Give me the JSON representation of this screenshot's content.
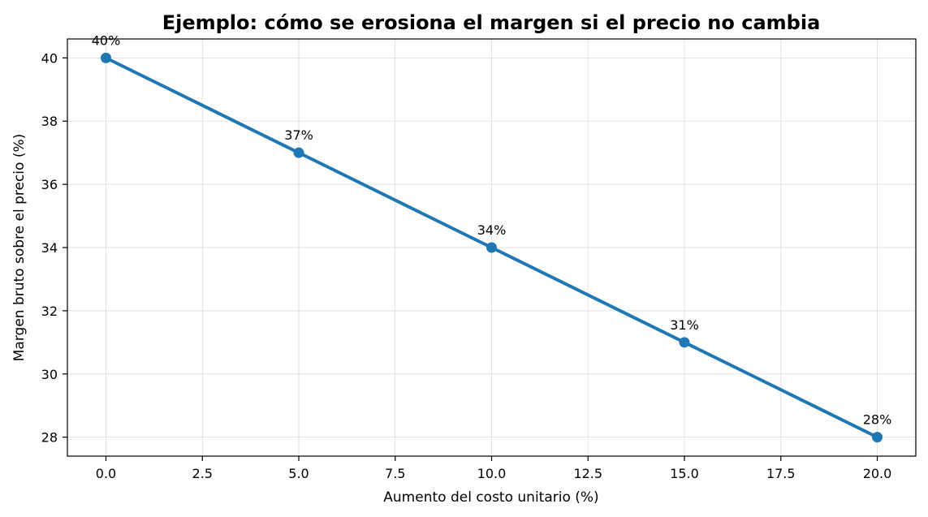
{
  "chart_data": {
    "type": "line",
    "title": "Ejemplo: cómo se erosiona el margen si el precio no cambia",
    "xlabel": "Aumento del costo unitario (%)",
    "ylabel": "Margen bruto sobre el precio (%)",
    "x": [
      0,
      5,
      10,
      15,
      20
    ],
    "series": [
      {
        "values": [
          40,
          37,
          34,
          31,
          28
        ],
        "color": "#1f77b4"
      }
    ],
    "data_labels": [
      "40%",
      "37%",
      "34%",
      "31%",
      "28%"
    ],
    "xlim": [
      -1,
      21
    ],
    "ylim": [
      27.4,
      40.6
    ],
    "xticks": [
      0,
      2.5,
      5,
      7.5,
      10,
      12.5,
      15,
      17.5,
      20
    ],
    "xtick_labels": [
      "0.0",
      "2.5",
      "5.0",
      "7.5",
      "10.0",
      "12.5",
      "15.0",
      "17.5",
      "20.0"
    ],
    "yticks": [
      28,
      30,
      32,
      34,
      36,
      38,
      40
    ],
    "ytick_labels": [
      "28",
      "30",
      "32",
      "34",
      "36",
      "38",
      "40"
    ],
    "grid": true,
    "markers": "circle"
  }
}
